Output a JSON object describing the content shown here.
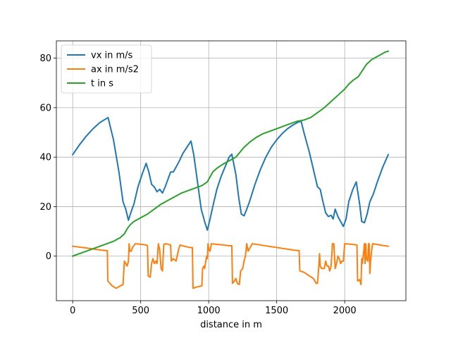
{
  "chart_data": {
    "type": "line",
    "title": "",
    "xlabel": "distance in m",
    "ylabel": "",
    "xlim": [
      -120,
      2450
    ],
    "ylim": [
      -18,
      87
    ],
    "x_ticks": [
      0,
      500,
      1000,
      1500,
      2000
    ],
    "y_ticks": [
      0,
      20,
      40,
      60,
      80
    ],
    "grid": true,
    "legend_position": "top-left",
    "series": [
      {
        "name": "vx in m/s",
        "color": "#1f77b4",
        "points": [
          [
            0,
            41
          ],
          [
            50,
            45
          ],
          [
            100,
            48.5
          ],
          [
            150,
            51.5
          ],
          [
            200,
            54
          ],
          [
            260,
            56
          ],
          [
            300,
            47
          ],
          [
            340,
            34
          ],
          [
            370,
            22
          ],
          [
            390,
            19
          ],
          [
            410,
            14.5
          ],
          [
            430,
            18
          ],
          [
            450,
            21
          ],
          [
            480,
            28
          ],
          [
            510,
            33
          ],
          [
            540,
            37.5
          ],
          [
            560,
            34
          ],
          [
            580,
            29
          ],
          [
            600,
            28
          ],
          [
            620,
            26
          ],
          [
            640,
            27
          ],
          [
            660,
            25.5
          ],
          [
            680,
            28
          ],
          [
            700,
            31
          ],
          [
            720,
            34
          ],
          [
            740,
            34
          ],
          [
            760,
            36
          ],
          [
            780,
            38
          ],
          [
            810,
            41.5
          ],
          [
            840,
            44
          ],
          [
            870,
            46.5
          ],
          [
            890,
            41
          ],
          [
            920,
            29
          ],
          [
            945,
            19
          ],
          [
            970,
            14
          ],
          [
            990,
            10.5
          ],
          [
            1010,
            15
          ],
          [
            1030,
            20
          ],
          [
            1060,
            27
          ],
          [
            1090,
            32
          ],
          [
            1120,
            36
          ],
          [
            1150,
            40
          ],
          [
            1170,
            41.2
          ],
          [
            1200,
            33
          ],
          [
            1220,
            24
          ],
          [
            1240,
            17
          ],
          [
            1260,
            16.3
          ],
          [
            1280,
            19
          ],
          [
            1300,
            22
          ],
          [
            1340,
            29
          ],
          [
            1380,
            35
          ],
          [
            1420,
            40
          ],
          [
            1460,
            44
          ],
          [
            1500,
            47
          ],
          [
            1540,
            49.5
          ],
          [
            1580,
            51.5
          ],
          [
            1620,
            53
          ],
          [
            1660,
            54.2
          ],
          [
            1680,
            54.5
          ],
          [
            1700,
            50
          ],
          [
            1740,
            42
          ],
          [
            1770,
            35
          ],
          [
            1800,
            28
          ],
          [
            1820,
            27
          ],
          [
            1840,
            22
          ],
          [
            1860,
            17.5
          ],
          [
            1880,
            16
          ],
          [
            1900,
            16.5
          ],
          [
            1915,
            15
          ],
          [
            1930,
            19
          ],
          [
            1950,
            16
          ],
          [
            1970,
            14
          ],
          [
            1990,
            12
          ],
          [
            2010,
            15
          ],
          [
            2030,
            22
          ],
          [
            2060,
            27
          ],
          [
            2085,
            30
          ],
          [
            2110,
            21
          ],
          [
            2125,
            14
          ],
          [
            2145,
            13.5
          ],
          [
            2165,
            17
          ],
          [
            2185,
            22
          ],
          [
            2210,
            25
          ],
          [
            2240,
            30
          ],
          [
            2280,
            36
          ],
          [
            2320,
            41
          ]
        ]
      },
      {
        "name": "ax in m/s2",
        "color": "#ff7f0e",
        "points": [
          [
            0,
            4
          ],
          [
            100,
            3.3
          ],
          [
            200,
            2.5
          ],
          [
            255,
            2.2
          ],
          [
            258,
            -10
          ],
          [
            290,
            -12
          ],
          [
            320,
            -13
          ],
          [
            350,
            -12
          ],
          [
            370,
            -11.5
          ],
          [
            380,
            -2
          ],
          [
            390,
            -3
          ],
          [
            400,
            -4
          ],
          [
            410,
            -2
          ],
          [
            415,
            5
          ],
          [
            420,
            2
          ],
          [
            430,
            2
          ],
          [
            440,
            3.5
          ],
          [
            460,
            5
          ],
          [
            500,
            4.8
          ],
          [
            540,
            4.5
          ],
          [
            550,
            4.2
          ],
          [
            555,
            -8
          ],
          [
            570,
            -8.5
          ],
          [
            580,
            -3
          ],
          [
            590,
            -1
          ],
          [
            600,
            -3
          ],
          [
            610,
            -2
          ],
          [
            620,
            -3
          ],
          [
            630,
            5
          ],
          [
            640,
            2.5
          ],
          [
            650,
            -5
          ],
          [
            660,
            -6
          ],
          [
            670,
            4.8
          ],
          [
            690,
            5
          ],
          [
            720,
            4.5
          ],
          [
            725,
            -2
          ],
          [
            740,
            -1
          ],
          [
            760,
            -2
          ],
          [
            780,
            3
          ],
          [
            790,
            4.5
          ],
          [
            820,
            4
          ],
          [
            860,
            3.5
          ],
          [
            880,
            3.5
          ],
          [
            885,
            -13
          ],
          [
            910,
            -12.5
          ],
          [
            950,
            -12
          ],
          [
            955,
            -5
          ],
          [
            965,
            -4
          ],
          [
            970,
            -5
          ],
          [
            985,
            0
          ],
          [
            990,
            -1
          ],
          [
            995,
            5
          ],
          [
            1000,
            3
          ],
          [
            1010,
            2
          ],
          [
            1020,
            5
          ],
          [
            1070,
            4.7
          ],
          [
            1110,
            4.5
          ],
          [
            1150,
            4.2
          ],
          [
            1170,
            4.2
          ],
          [
            1175,
            -11
          ],
          [
            1190,
            -10
          ],
          [
            1200,
            -9
          ],
          [
            1210,
            -11
          ],
          [
            1225,
            -11.5
          ],
          [
            1235,
            -6
          ],
          [
            1250,
            -5
          ],
          [
            1260,
            -2
          ],
          [
            1270,
            0
          ],
          [
            1280,
            5
          ],
          [
            1290,
            2
          ],
          [
            1300,
            3
          ],
          [
            1320,
            5
          ],
          [
            1380,
            4.5
          ],
          [
            1440,
            4
          ],
          [
            1500,
            3.5
          ],
          [
            1560,
            3
          ],
          [
            1620,
            2.5
          ],
          [
            1665,
            2.2
          ],
          [
            1670,
            -6
          ],
          [
            1700,
            -6.5
          ],
          [
            1740,
            -8
          ],
          [
            1770,
            -9
          ],
          [
            1790,
            -11
          ],
          [
            1800,
            -11
          ],
          [
            1810,
            -4
          ],
          [
            1815,
            1
          ],
          [
            1820,
            -4
          ],
          [
            1830,
            -5
          ],
          [
            1850,
            -5
          ],
          [
            1860,
            -2
          ],
          [
            1870,
            -4
          ],
          [
            1880,
            -4
          ],
          [
            1890,
            -6
          ],
          [
            1900,
            -4
          ],
          [
            1910,
            5
          ],
          [
            1920,
            5
          ],
          [
            1930,
            -5
          ],
          [
            1940,
            -3
          ],
          [
            1950,
            0
          ],
          [
            1960,
            -1
          ],
          [
            1970,
            -3
          ],
          [
            1980,
            -2
          ],
          [
            1990,
            -2
          ],
          [
            2000,
            5
          ],
          [
            2050,
            4.8
          ],
          [
            2090,
            4.5
          ],
          [
            2095,
            -10
          ],
          [
            2110,
            -9.5
          ],
          [
            2120,
            -11.5
          ],
          [
            2125,
            -1
          ],
          [
            2130,
            -3
          ],
          [
            2140,
            2
          ],
          [
            2145,
            5
          ],
          [
            2150,
            -3
          ],
          [
            2155,
            5
          ],
          [
            2160,
            -1
          ],
          [
            2170,
            -2
          ],
          [
            2175,
            5
          ],
          [
            2180,
            5
          ],
          [
            2185,
            -7
          ],
          [
            2190,
            -2
          ],
          [
            2200,
            3
          ],
          [
            2205,
            5
          ],
          [
            2250,
            4.6
          ],
          [
            2320,
            4
          ]
        ]
      },
      {
        "name": "t in s",
        "color": "#2ca02c",
        "points": [
          [
            0,
            0
          ],
          [
            50,
            1
          ],
          [
            100,
            2
          ],
          [
            150,
            3
          ],
          [
            200,
            4
          ],
          [
            250,
            5
          ],
          [
            300,
            6
          ],
          [
            350,
            7.5
          ],
          [
            380,
            9
          ],
          [
            400,
            11
          ],
          [
            420,
            12.5
          ],
          [
            450,
            14
          ],
          [
            500,
            15.5
          ],
          [
            550,
            17
          ],
          [
            600,
            19
          ],
          [
            650,
            21
          ],
          [
            700,
            22.5
          ],
          [
            750,
            24
          ],
          [
            800,
            25.5
          ],
          [
            850,
            26.5
          ],
          [
            900,
            27.5
          ],
          [
            950,
            28.5
          ],
          [
            990,
            30
          ],
          [
            1010,
            32
          ],
          [
            1030,
            34
          ],
          [
            1060,
            35.5
          ],
          [
            1100,
            37
          ],
          [
            1150,
            38.5
          ],
          [
            1200,
            40
          ],
          [
            1230,
            42
          ],
          [
            1260,
            44
          ],
          [
            1300,
            46
          ],
          [
            1350,
            48
          ],
          [
            1400,
            49.5
          ],
          [
            1450,
            50.5
          ],
          [
            1500,
            51.5
          ],
          [
            1550,
            52.5
          ],
          [
            1600,
            53.5
          ],
          [
            1650,
            54.5
          ],
          [
            1700,
            55
          ],
          [
            1750,
            56
          ],
          [
            1800,
            58
          ],
          [
            1850,
            60
          ],
          [
            1900,
            62.5
          ],
          [
            1950,
            65
          ],
          [
            2000,
            67.5
          ],
          [
            2030,
            69.5
          ],
          [
            2060,
            71
          ],
          [
            2100,
            72.5
          ],
          [
            2130,
            75
          ],
          [
            2160,
            77.5
          ],
          [
            2200,
            79.5
          ],
          [
            2250,
            81
          ],
          [
            2300,
            82.5
          ],
          [
            2320,
            82.8
          ]
        ]
      }
    ]
  }
}
